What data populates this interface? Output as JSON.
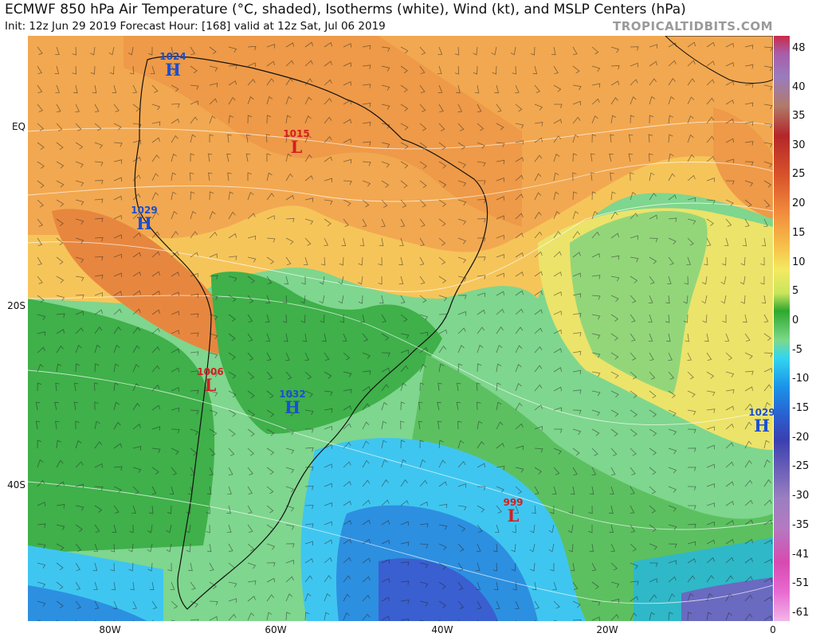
{
  "header": {
    "title": "ECMWF 850 hPa Air Temperature (°C, shaded), Isotherms (white), Wind (kt), and MSLP Centers (hPa)",
    "subtitle": "Init: 12z Jun 29 2019   Forecast Hour: [168]   valid at 12z Sat, Jul 06 2019",
    "brand": "TROPICALTIDBITS.COM"
  },
  "axes": {
    "lat_labels": [
      "EQ",
      "20S",
      "40S"
    ],
    "lon_labels": [
      "80W",
      "60W",
      "40W",
      "20W",
      "0"
    ]
  },
  "colorbar": {
    "unit": "°C",
    "labels": [
      "48",
      "40",
      "35",
      "30",
      "25",
      "20",
      "15",
      "10",
      "5",
      "0",
      "-5",
      "-10",
      "-15",
      "-20",
      "-25",
      "-30",
      "-35",
      "-41",
      "-51",
      "-61"
    ],
    "colors": [
      "#c92a4a",
      "#a85da8",
      "#9a7cbd",
      "#b07a6a",
      "#b3262a",
      "#d8542a",
      "#f08a3c",
      "#f6c04a",
      "#f4ea62",
      "#c9e45e",
      "#2ea82e",
      "#7cd88a",
      "#33d6f0",
      "#1a93e8",
      "#2a5fcf",
      "#3a3fb0",
      "#6a5fb8",
      "#9a7fc0",
      "#b47ac0",
      "#d84ab0",
      "#e86ad0",
      "#f2b6e8"
    ]
  },
  "pressure_centers": [
    {
      "type": "high",
      "symbol": "H",
      "value": "1024"
    },
    {
      "type": "low",
      "symbol": "L",
      "value": "1015"
    },
    {
      "type": "high",
      "symbol": "H",
      "value": "1029"
    },
    {
      "type": "low",
      "symbol": "L",
      "value": "1006"
    },
    {
      "type": "high",
      "symbol": "H",
      "value": "1032"
    },
    {
      "type": "low",
      "symbol": "L",
      "value": "999"
    },
    {
      "type": "high",
      "symbol": "H",
      "value": "1029"
    }
  ]
}
